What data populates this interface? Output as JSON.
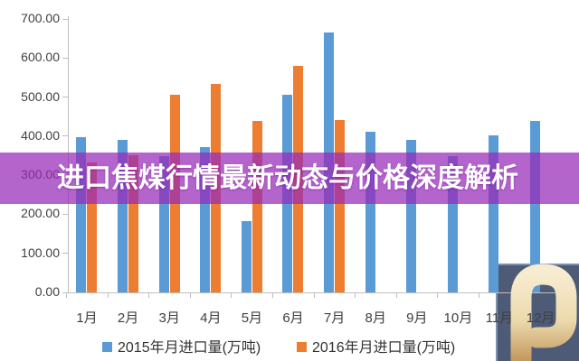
{
  "title_overlay": {
    "text": "进口焦煤行情最新动态与价格深度解析",
    "bg_color": "rgba(151,41,185,0.72)",
    "text_color": "#ffffff"
  },
  "chart_data": {
    "type": "bar",
    "title": "",
    "xlabel": "",
    "ylabel": "",
    "categories": [
      "1月",
      "2月",
      "3月",
      "4月",
      "5月",
      "6月",
      "7月",
      "8月",
      "9月",
      "10月",
      "11月",
      "12月"
    ],
    "series": [
      {
        "name": "2015年月进口量(万吨)",
        "color": "#5b9bd5",
        "values": [
          397,
          391,
          348,
          372,
          182,
          505,
          665,
          411,
          390,
          349,
          402,
          440
        ]
      },
      {
        "name": "2016年月进口量(万吨)",
        "color": "#ed7d31",
        "values": [
          332,
          351,
          505,
          533,
          440,
          579,
          442,
          null,
          null,
          null,
          null,
          null
        ]
      }
    ],
    "ylim": [
      0,
      700
    ],
    "ytick_step": 100,
    "ytick_labels": [
      "0.00",
      "100.00",
      "200.00",
      "300.00",
      "400.00",
      "500.00",
      "600.00",
      "700.00"
    ],
    "grid": false,
    "legend_position": "bottom",
    "axis_color": "#bfbfbf",
    "label_color": "#3f3f3f"
  },
  "watermark": {
    "icon": "golden-p-logo",
    "square_color": "#344464",
    "glyph_color_light": "#f4e7c6",
    "glyph_color_dark": "#c8a169"
  }
}
